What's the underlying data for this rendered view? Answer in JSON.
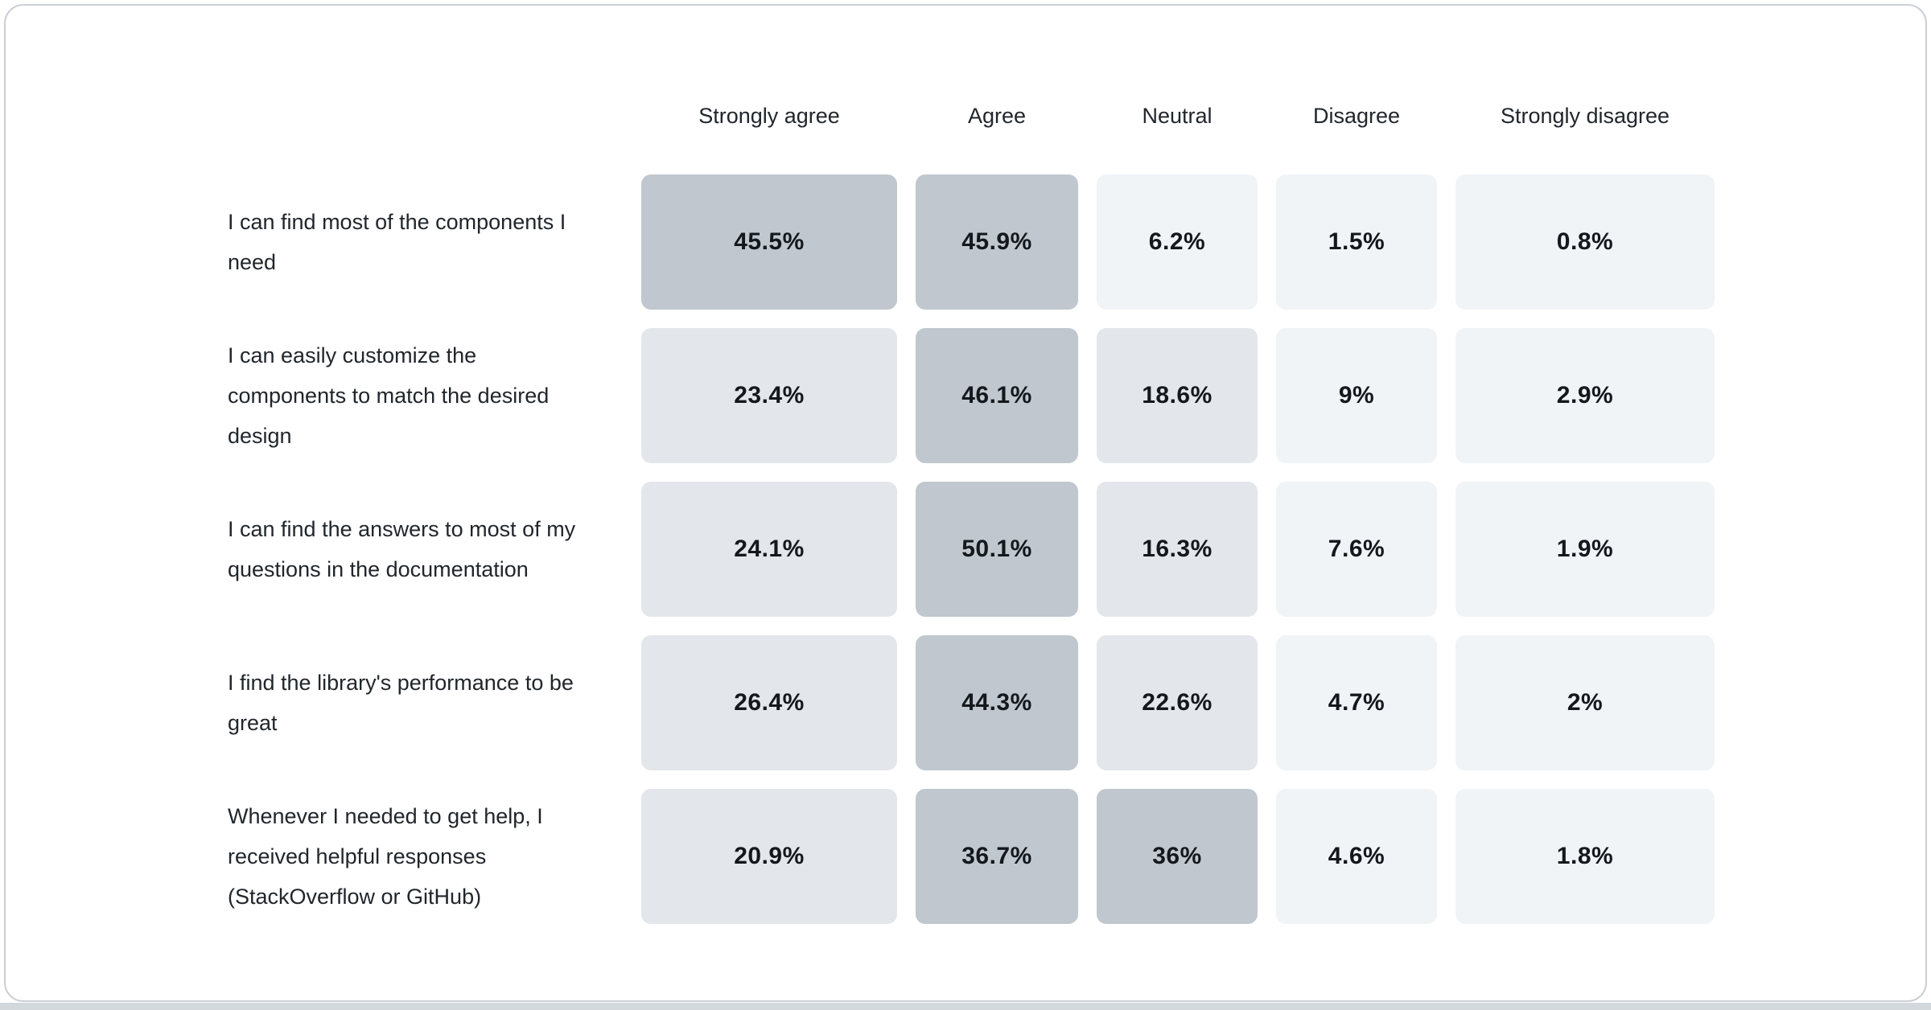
{
  "page": {
    "background": "#ffffff",
    "card_border_color": "#cacfd6",
    "card_background": "#ffffff",
    "bottom_strip_color": "#d3d8dd",
    "header_text_color": "#21262c",
    "value_text_color": "#14181d"
  },
  "chart_data": {
    "type": "heatmap",
    "title": "",
    "columns": [
      "Strongly agree",
      "Agree",
      "Neutral",
      "Disagree",
      "Strongly disagree"
    ],
    "rows": [
      {
        "statement": "I can find most of the components I need",
        "cells": [
          {
            "label": "45.5%",
            "value": 45.5
          },
          {
            "label": "45.9%",
            "value": 45.9
          },
          {
            "label": "6.2%",
            "value": 6.2
          },
          {
            "label": "1.5%",
            "value": 1.5
          },
          {
            "label": "0.8%",
            "value": 0.8
          }
        ]
      },
      {
        "statement": "I can easily customize the components to match the desired design",
        "cells": [
          {
            "label": "23.4%",
            "value": 23.4
          },
          {
            "label": "46.1%",
            "value": 46.1
          },
          {
            "label": "18.6%",
            "value": 18.6
          },
          {
            "label": "9%",
            "value": 9
          },
          {
            "label": "2.9%",
            "value": 2.9
          }
        ]
      },
      {
        "statement": "I can find the answers to most of my questions in the documentation",
        "cells": [
          {
            "label": "24.1%",
            "value": 24.1
          },
          {
            "label": "50.1%",
            "value": 50.1
          },
          {
            "label": "16.3%",
            "value": 16.3
          },
          {
            "label": "7.6%",
            "value": 7.6
          },
          {
            "label": "1.9%",
            "value": 1.9
          }
        ]
      },
      {
        "statement": "I find the library's performance to be great",
        "cells": [
          {
            "label": "26.4%",
            "value": 26.4
          },
          {
            "label": "44.3%",
            "value": 44.3
          },
          {
            "label": "22.6%",
            "value": 22.6
          },
          {
            "label": "4.7%",
            "value": 4.7
          },
          {
            "label": "2%",
            "value": 2
          }
        ]
      },
      {
        "statement": "Whenever I needed to get help, I received helpful responses (StackOverflow or GitHub)",
        "cells": [
          {
            "label": "20.9%",
            "value": 20.9
          },
          {
            "label": "36.7%",
            "value": 36.7
          },
          {
            "label": "36%",
            "value": 36
          },
          {
            "label": "4.6%",
            "value": 4.6
          },
          {
            "label": "1.8%",
            "value": 1.8
          }
        ]
      }
    ],
    "color_scale": {
      "high": {
        "min": 30,
        "color": "#c0c7ce"
      },
      "mid": {
        "min": 10,
        "color": "#e3e6ea"
      },
      "low": {
        "min": 0,
        "color": "#f0f4f7"
      }
    },
    "legend_position": "none",
    "grid": false
  }
}
